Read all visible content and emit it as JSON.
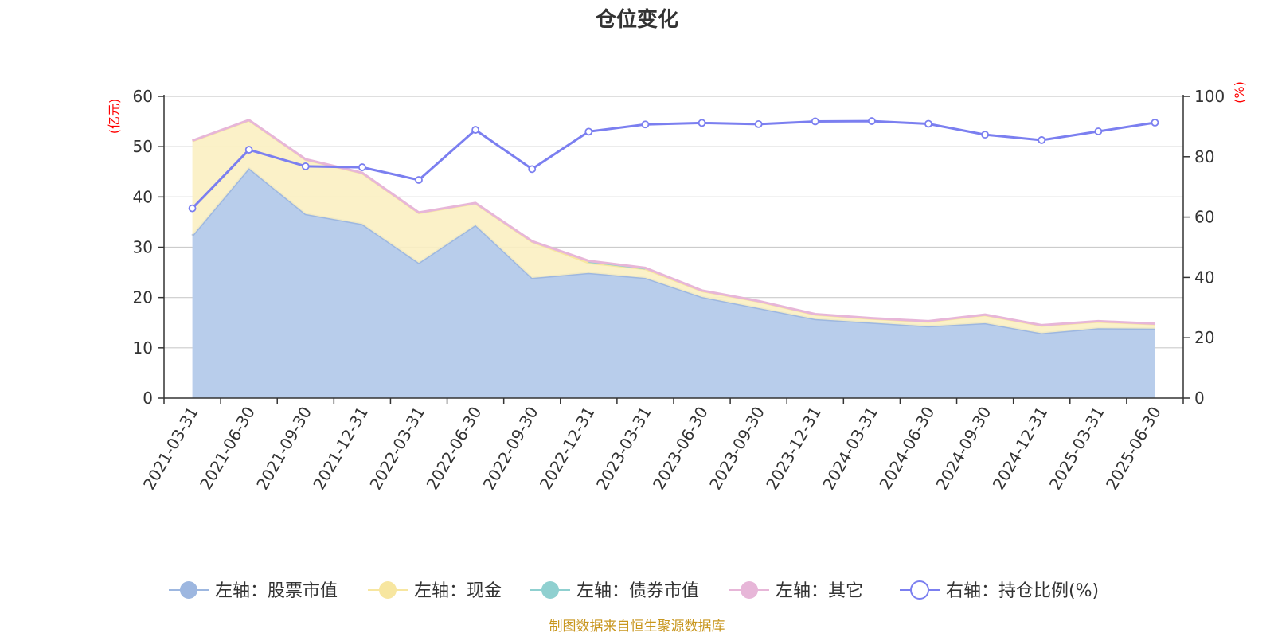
{
  "chart_data": {
    "type": "area",
    "title": "仓位变化",
    "source": "制图数据来自恒生聚源数据库",
    "x": [
      "2021-03-31",
      "2021-06-30",
      "2021-09-30",
      "2021-12-31",
      "2022-03-31",
      "2022-06-30",
      "2022-09-30",
      "2022-12-31",
      "2023-03-31",
      "2023-06-30",
      "2023-09-30",
      "2023-12-31",
      "2024-03-31",
      "2024-06-30",
      "2024-09-30",
      "2024-12-31",
      "2025-03-31",
      "2025-06-30"
    ],
    "y_left": {
      "unit": "(亿元)",
      "range": [
        0,
        60
      ],
      "ticks": [
        "0",
        "10",
        "20",
        "30",
        "40",
        "50",
        "60"
      ]
    },
    "y_right": {
      "unit": "(%)",
      "range": [
        0,
        100
      ],
      "ticks": [
        "0",
        "20",
        "40",
        "60",
        "80",
        "100"
      ]
    },
    "grid": true,
    "legend_position": "bottom",
    "series": [
      {
        "name": "左轴：股票市值",
        "axis": "left",
        "color": "#9db7e0",
        "fill": "#b8cdeb",
        "values": [
          32.3,
          45.7,
          36.6,
          34.6,
          26.9,
          34.4,
          23.9,
          24.9,
          23.9,
          20.1,
          17.9,
          15.7,
          15.0,
          14.3,
          14.9,
          12.9,
          13.9,
          13.8
        ]
      },
      {
        "name": "左轴：现金",
        "axis": "left",
        "color": "#f7e6a0",
        "fill": "#fbf0c2",
        "values": [
          18.8,
          9.5,
          10.8,
          10.1,
          9.9,
          4.3,
          7.2,
          2.0,
          1.8,
          1.2,
          1.3,
          0.9,
          0.8,
          0.9,
          1.6,
          1.5,
          1.3,
          0.9
        ]
      },
      {
        "name": "左轴：债券市值",
        "axis": "left",
        "color": "#8fd0d0",
        "fill": "#8fd0d0",
        "values": [
          null,
          null,
          null,
          null,
          null,
          null,
          null,
          0.3,
          0.1,
          null,
          null,
          null,
          null,
          null,
          null,
          null,
          null,
          null
        ]
      },
      {
        "name": "左轴：其它",
        "axis": "left",
        "color": "#e7b6d8",
        "fill": "#e7b6d8",
        "values": [
          0.1,
          0.1,
          0.1,
          0.1,
          0.1,
          0.1,
          0.1,
          0.1,
          0.1,
          0.1,
          0.1,
          0.1,
          0.1,
          0.1,
          0.1,
          0.1,
          0.1,
          0.1
        ]
      },
      {
        "name": "右轴：持仓比例(%)",
        "axis": "right",
        "color": "#7b7ff0",
        "values": [
          62.9,
          82.3,
          76.8,
          76.5,
          72.3,
          88.9,
          75.9,
          88.3,
          90.7,
          91.2,
          90.8,
          91.7,
          91.8,
          90.9,
          87.3,
          85.5,
          88.4,
          91.3
        ]
      }
    ]
  }
}
